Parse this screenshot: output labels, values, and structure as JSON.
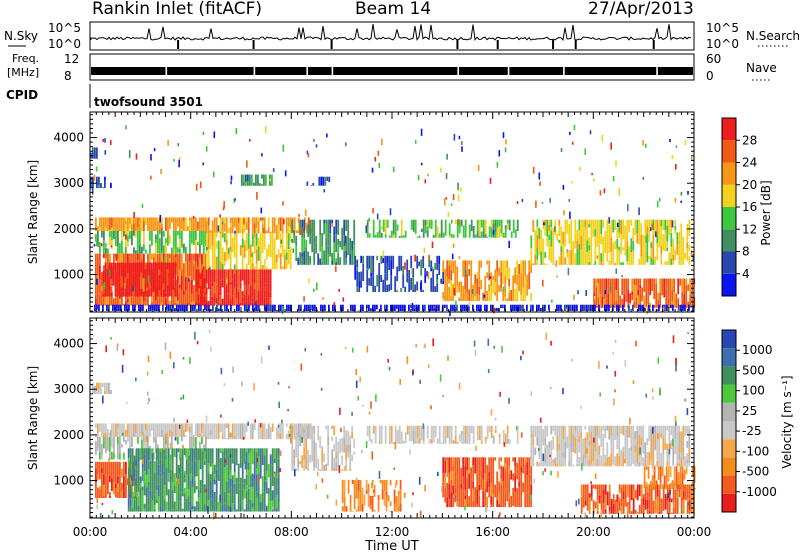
{
  "header": {
    "station": "Rankin Inlet (fitACF)",
    "beam": "Beam 14",
    "date": "27/Apr/2013"
  },
  "strip_panels": {
    "nsky_label": "N.Sky",
    "nsky_ticks": [
      "10^5",
      "10^0"
    ],
    "nsearch_label": "N.Search",
    "nsearch_ticks": [
      "10^5",
      "10^0"
    ],
    "freq_label_line1": "Freq.",
    "freq_label_line2": "[MHz]",
    "freq_ticks": [
      "12",
      "8"
    ],
    "nave_label": "Nave",
    "nave_ticks": [
      "60",
      "0"
    ],
    "cpid_label": "CPID",
    "cpid_value": "twofsound 3501"
  },
  "chart_data": [
    {
      "type": "heatmap",
      "name": "power",
      "ylabel": "Slant Range [km]",
      "xlabel": "",
      "x_ticks": [
        "00:00",
        "04:00",
        "08:00",
        "12:00",
        "16:00",
        "20:00",
        "00:00"
      ],
      "y_ticks": [
        1000,
        2000,
        3000,
        4000
      ],
      "ylim": [
        180,
        4560
      ],
      "xlim_hours": [
        0,
        24
      ],
      "colorbar_label": "Power [dB]",
      "colorbar_ticks": [
        "28",
        "24",
        "20",
        "16",
        "12",
        "8",
        "4"
      ],
      "colors": [
        "#0a14f0",
        "#2848b0",
        "#3f8f5f",
        "#3cc83c",
        "#f2d21e",
        "#f59614",
        "#f05a14",
        "#ee1e1e"
      ],
      "blobs": [
        {
          "t": [
            0.0,
            0.3
          ],
          "r": [
            3550,
            3800
          ],
          "c": 1,
          "d": 0.7
        },
        {
          "t": [
            0.0,
            0.8
          ],
          "r": [
            2900,
            3150
          ],
          "c": 1,
          "d": 0.6
        },
        {
          "t": [
            0.2,
            4.6
          ],
          "r": [
            1950,
            2250
          ],
          "c": 5,
          "d": 0.9
        },
        {
          "t": [
            0.2,
            4.6
          ],
          "r": [
            1450,
            1950
          ],
          "c": 3,
          "d": 0.7
        },
        {
          "t": [
            0.2,
            4.6
          ],
          "r": [
            300,
            1450
          ],
          "c": 6,
          "d": 0.95
        },
        {
          "t": [
            0.5,
            3.5
          ],
          "r": [
            500,
            1250
          ],
          "c": 7,
          "d": 0.95
        },
        {
          "t": [
            4.2,
            7.2
          ],
          "r": [
            300,
            1100
          ],
          "c": 7,
          "d": 0.95
        },
        {
          "t": [
            4.6,
            8.0
          ],
          "r": [
            1100,
            1900
          ],
          "c": 4,
          "d": 0.75
        },
        {
          "t": [
            4.6,
            8.8
          ],
          "r": [
            1900,
            2250
          ],
          "c": 5,
          "d": 0.8
        },
        {
          "t": [
            6.0,
            7.2
          ],
          "r": [
            2950,
            3200
          ],
          "c": 2,
          "d": 0.6
        },
        {
          "t": [
            8.0,
            10.5
          ],
          "r": [
            1200,
            2200
          ],
          "c": 2,
          "d": 0.7
        },
        {
          "t": [
            8.6,
            9.6
          ],
          "r": [
            2950,
            3150
          ],
          "c": 1,
          "d": 0.6
        },
        {
          "t": [
            10.5,
            14.0
          ],
          "r": [
            600,
            1400
          ],
          "c": 1,
          "d": 0.5
        },
        {
          "t": [
            11.0,
            17.0
          ],
          "r": [
            1800,
            2200
          ],
          "c": 3,
          "d": 0.6
        },
        {
          "t": [
            14.0,
            17.5
          ],
          "r": [
            400,
            1300
          ],
          "c": 5,
          "d": 0.75
        },
        {
          "t": [
            17.5,
            23.8
          ],
          "r": [
            1200,
            2200
          ],
          "c": 4,
          "d": 0.75
        },
        {
          "t": [
            20.0,
            24.0
          ],
          "r": [
            250,
            900
          ],
          "c": 6,
          "d": 0.85
        },
        {
          "t": [
            0.0,
            24.0
          ],
          "r": [
            180,
            320
          ],
          "c": 0,
          "d": 0.7
        }
      ]
    },
    {
      "type": "heatmap",
      "name": "velocity",
      "ylabel": "Slant Range [km]",
      "xlabel": "Time UT",
      "x_ticks": [
        "00:00",
        "04:00",
        "08:00",
        "12:00",
        "16:00",
        "20:00",
        "00:00"
      ],
      "y_ticks": [
        1000,
        2000,
        3000,
        4000
      ],
      "ylim": [
        180,
        4560
      ],
      "xlim_hours": [
        0,
        24
      ],
      "colorbar_label": "Velocity [m s⁻¹]",
      "colorbar_ticks": [
        "1000",
        "500",
        "100",
        "25",
        "-25",
        "-100",
        "-500",
        "-1000"
      ],
      "colors": [
        "#e81e1e",
        "#f25a1e",
        "#f58c1e",
        "#f5a64a",
        "#c8c8c8",
        "#b4b4b4",
        "#4bc83c",
        "#3f8f5f",
        "#3f6faa",
        "#2846b4"
      ],
      "blobs": [
        {
          "t": [
            0.0,
            0.8
          ],
          "r": [
            2900,
            3150
          ],
          "c": 4,
          "d": 0.7
        },
        {
          "t": [
            0.2,
            4.6
          ],
          "r": [
            1950,
            2250
          ],
          "c": 4,
          "d": 0.9
        },
        {
          "t": [
            0.2,
            4.6
          ],
          "r": [
            1450,
            1950
          ],
          "c": 5,
          "d": 0.5
        },
        {
          "t": [
            0.2,
            1.8
          ],
          "r": [
            600,
            1400
          ],
          "c": 1,
          "d": 0.85
        },
        {
          "t": [
            1.5,
            7.5
          ],
          "r": [
            300,
            1700
          ],
          "c": 7,
          "d": 0.9
        },
        {
          "t": [
            4.6,
            8.8
          ],
          "r": [
            1900,
            2250
          ],
          "c": 4,
          "d": 0.8
        },
        {
          "t": [
            8.0,
            10.5
          ],
          "r": [
            1200,
            2200
          ],
          "c": 4,
          "d": 0.6
        },
        {
          "t": [
            10.0,
            12.5
          ],
          "r": [
            300,
            1000
          ],
          "c": 2,
          "d": 0.6
        },
        {
          "t": [
            11.0,
            17.0
          ],
          "r": [
            1800,
            2200
          ],
          "c": 4,
          "d": 0.6
        },
        {
          "t": [
            14.0,
            17.5
          ],
          "r": [
            400,
            1500
          ],
          "c": 1,
          "d": 0.85
        },
        {
          "t": [
            17.5,
            23.8
          ],
          "r": [
            1300,
            2200
          ],
          "c": 4,
          "d": 0.8
        },
        {
          "t": [
            19.5,
            24.0
          ],
          "r": [
            250,
            900
          ],
          "c": 1,
          "d": 0.75
        },
        {
          "t": [
            22.0,
            24.0
          ],
          "r": [
            800,
            1300
          ],
          "c": 2,
          "d": 0.6
        }
      ]
    }
  ]
}
